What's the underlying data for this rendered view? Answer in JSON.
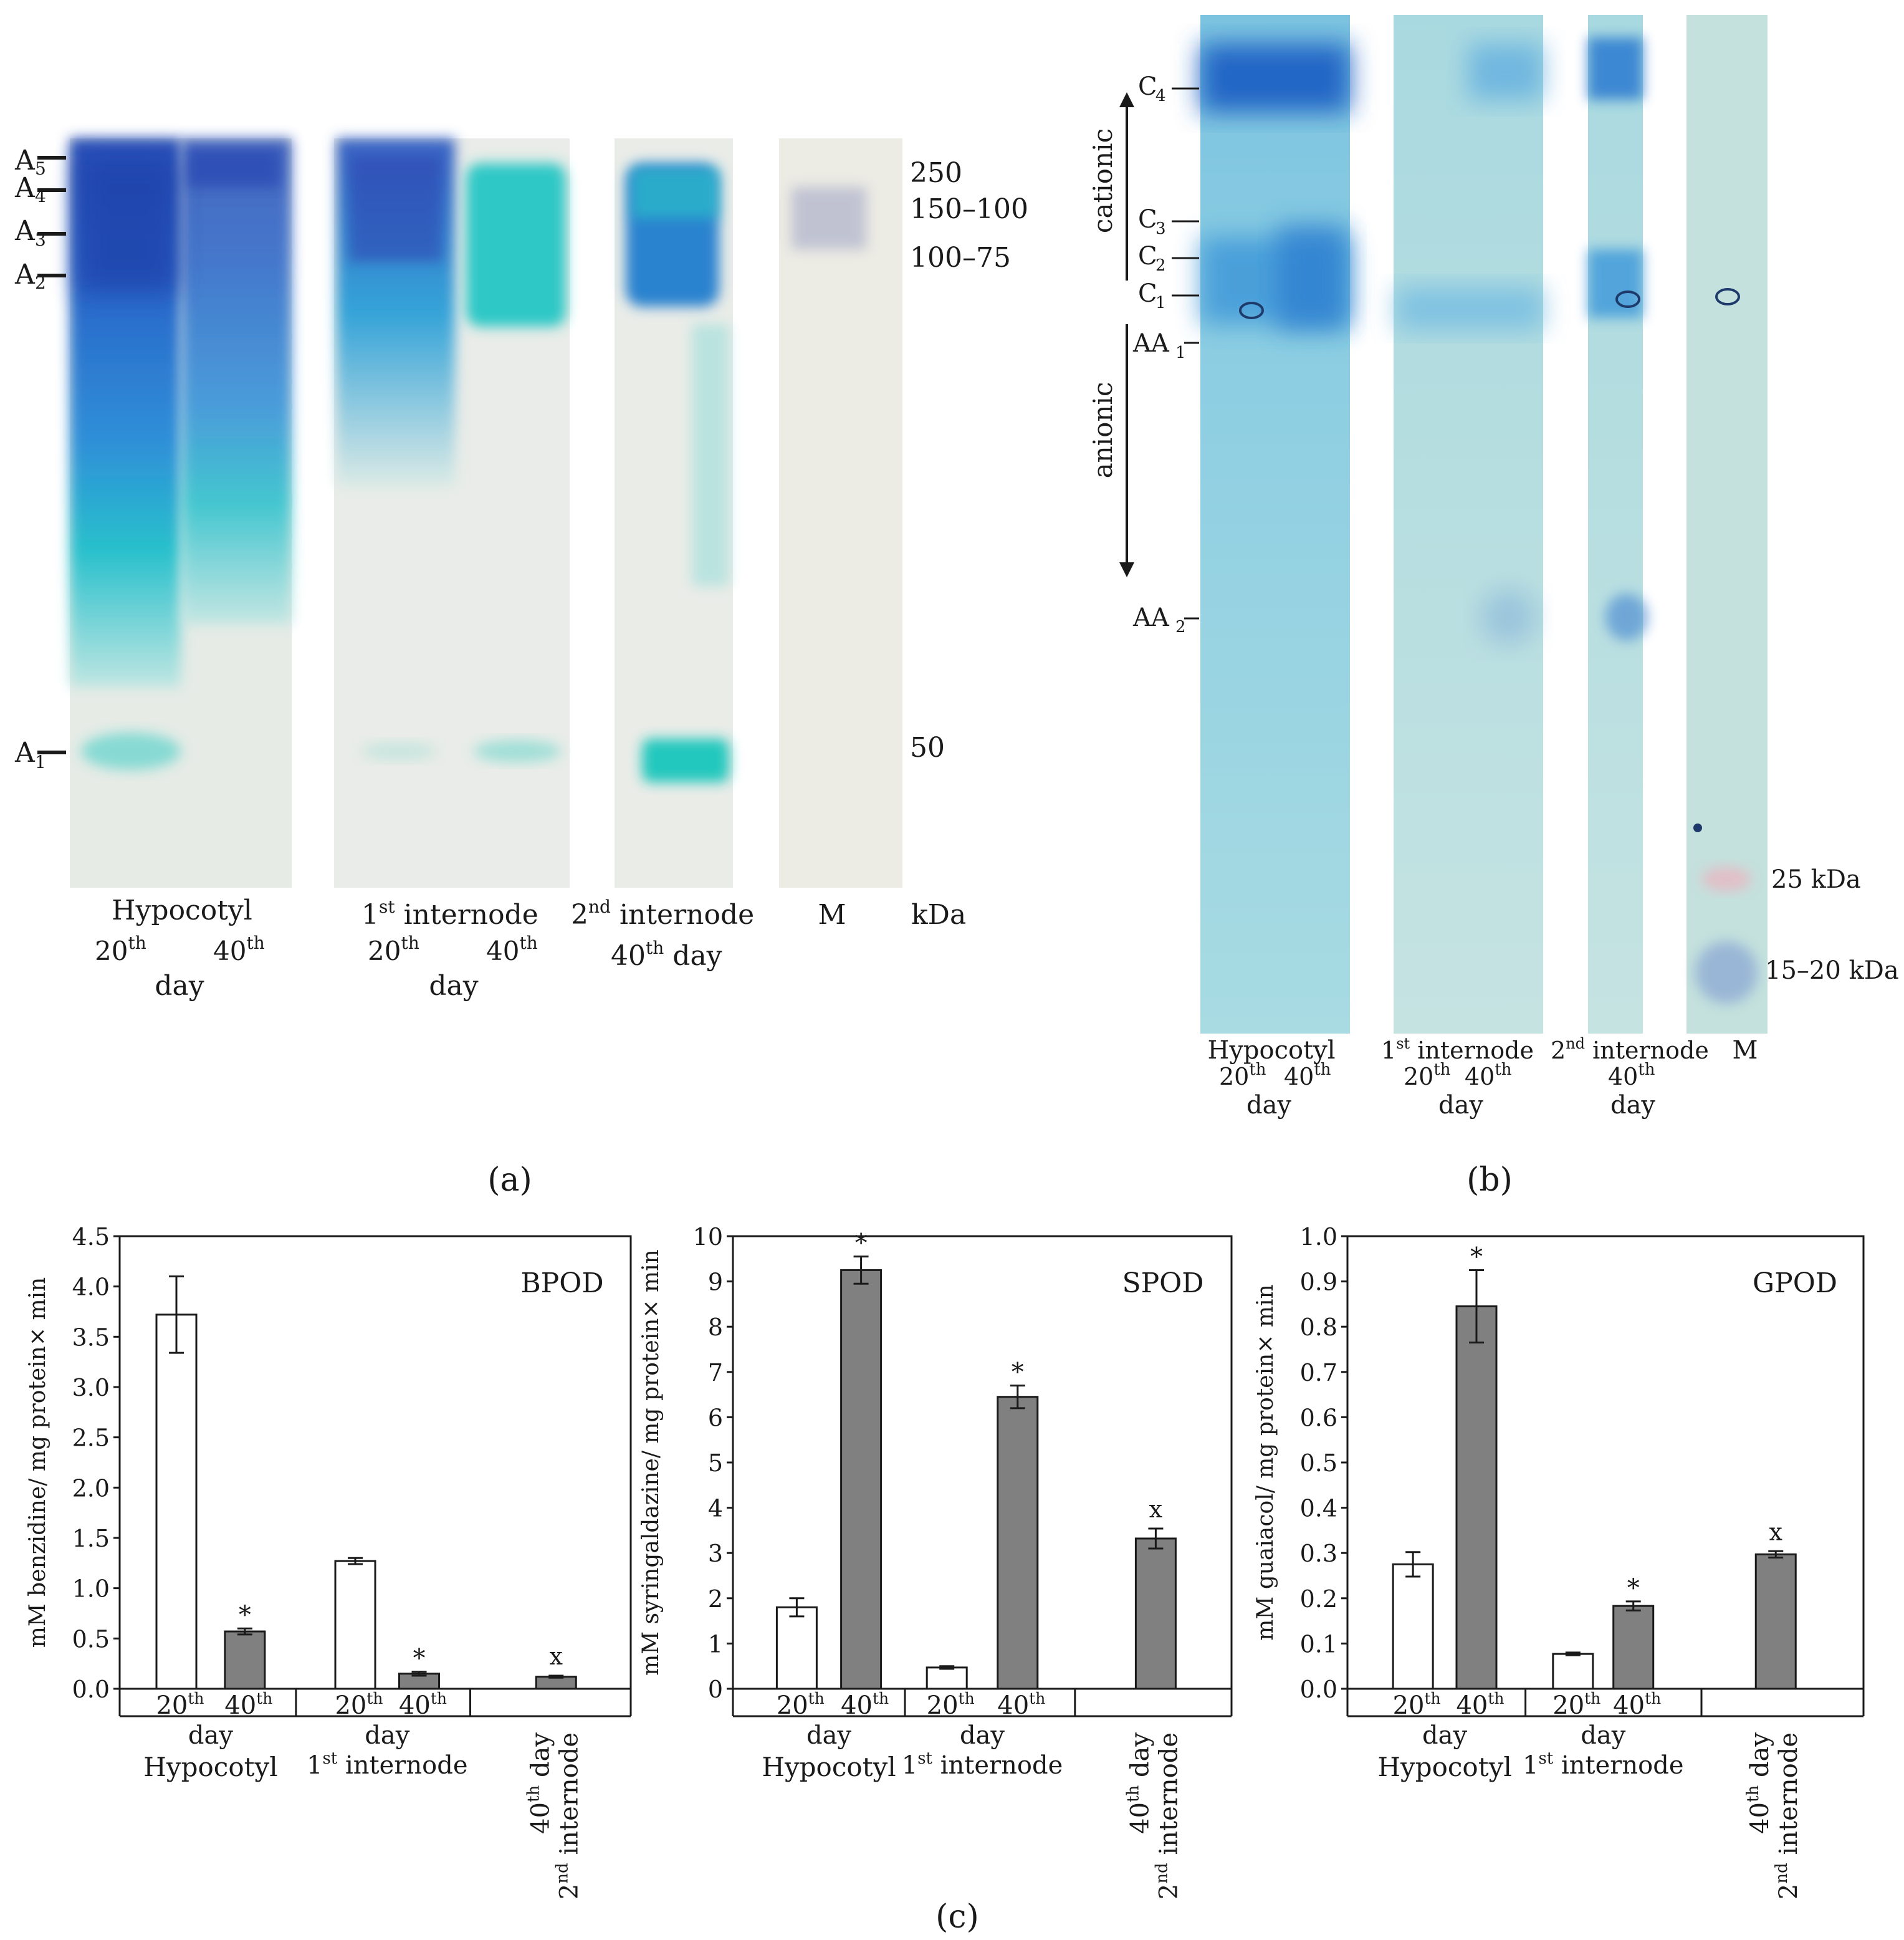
{
  "panels": {
    "a": {
      "label": "(a)",
      "band_labels": [
        {
          "main": "A",
          "sub": "5"
        },
        {
          "main": "A",
          "sub": "4"
        },
        {
          "main": "A",
          "sub": "3"
        },
        {
          "main": "A",
          "sub": "2"
        },
        {
          "main": "A",
          "sub": "1"
        }
      ],
      "marker_sizes": [
        "250",
        "150–100",
        "100–75",
        "50"
      ],
      "unit": "kDa",
      "lanes": {
        "hypocotyl": {
          "title": "Hypocotyl",
          "days": [
            "20",
            "40"
          ],
          "day_sup": "th",
          "day_word": "day"
        },
        "internode1": {
          "title_sup": "st",
          "title_num": "1",
          "title_rest": " internode",
          "days": [
            "20",
            "40"
          ],
          "day_sup": "th",
          "day_word": "day"
        },
        "internode2": {
          "title_num": "2",
          "title_sup": "nd",
          "title_rest": " internode",
          "day": "40",
          "day_sup": "th",
          "day_word": " day"
        },
        "marker": {
          "title": "M"
        }
      }
    },
    "b": {
      "label": "(b)",
      "cationic_label": "cationic",
      "anionic_label": "anionic",
      "band_labels": [
        {
          "main": "C",
          "sub": "4"
        },
        {
          "main": "C",
          "sub": "3"
        },
        {
          "main": "C",
          "sub": "2"
        },
        {
          "main": "C",
          "sub": "1"
        },
        {
          "main": "AA",
          "sub": "1"
        },
        {
          "main": "AA",
          "sub": "2"
        }
      ],
      "marker_sizes": [
        "25 kDa",
        "15–20 kDa"
      ],
      "lanes": {
        "hypocotyl": {
          "title": "Hypocotyl",
          "days": [
            "20",
            "40"
          ],
          "day_sup": "th",
          "day_word": "day"
        },
        "internode1": {
          "title_num": "1",
          "title_sup": "st",
          "title_rest": " internode",
          "days": [
            "20",
            "40"
          ],
          "day_sup": "th",
          "day_word": "day"
        },
        "internode2": {
          "title_num": "2",
          "title_sup": "nd",
          "title_rest": " internode",
          "day": "40",
          "day_sup": "th",
          "day_word": "day"
        },
        "marker": {
          "title": "M"
        }
      }
    },
    "c": {
      "label": "(c)",
      "category_labels": {
        "day20": "20",
        "day40": "40",
        "sup_th": "th",
        "day_word": "day",
        "hypocotyl": "Hypocotyl",
        "internode1_num": "1",
        "internode1_sup": "st",
        "internode1_rest": " internode",
        "rot_day": "40",
        "rot_day_sup": "th",
        "rot_day_word": " day",
        "rot_int_num": "2",
        "rot_int_sup": "nd",
        "rot_int_rest": " internode"
      }
    }
  },
  "colors": {
    "open_bar": "#ffffff",
    "filled_bar": "#808080",
    "axis": "#1a1a1a",
    "gel_background": "#eae9e3",
    "stain_dark": "#1f3fa8",
    "stain_cyan": "#27c4c6"
  },
  "chart_data": [
    {
      "type": "bar",
      "title": "BPOD",
      "ylabel": "mM benzidine/ mg protein× min",
      "ylim": [
        0,
        4.5
      ],
      "yticks": [
        0.0,
        0.5,
        1.0,
        1.5,
        2.0,
        2.5,
        3.0,
        3.5,
        4.0,
        4.5
      ],
      "ytick_labels": [
        "0.0",
        "0.5",
        "1.0",
        "1.5",
        "2.0",
        "2.5",
        "3.0",
        "3.5",
        "4.0",
        "4.5"
      ],
      "bars": [
        {
          "group": "Hypocotyl",
          "day": "20th",
          "value": 3.72,
          "error": 0.38,
          "fill": "open",
          "mark": ""
        },
        {
          "group": "Hypocotyl",
          "day": "40th",
          "value": 0.57,
          "error": 0.03,
          "fill": "filled",
          "mark": "*"
        },
        {
          "group": "1st internode",
          "day": "20th",
          "value": 1.27,
          "error": 0.03,
          "fill": "open",
          "mark": ""
        },
        {
          "group": "1st internode",
          "day": "40th",
          "value": 0.15,
          "error": 0.02,
          "fill": "filled",
          "mark": "*"
        },
        {
          "group": "2nd internode",
          "day": "40th",
          "value": 0.12,
          "error": 0.01,
          "fill": "filled",
          "mark": "x"
        }
      ]
    },
    {
      "type": "bar",
      "title": "SPOD",
      "ylabel": "mM  syringaldazine/ mg protein× min",
      "ylim": [
        0,
        10
      ],
      "yticks": [
        0,
        1,
        2,
        3,
        4,
        5,
        6,
        7,
        8,
        9,
        10
      ],
      "ytick_labels": [
        "0",
        "1",
        "2",
        "3",
        "4",
        "5",
        "6",
        "7",
        "8",
        "9",
        "10"
      ],
      "bars": [
        {
          "group": "Hypocotyl",
          "day": "20th",
          "value": 1.8,
          "error": 0.2,
          "fill": "open",
          "mark": ""
        },
        {
          "group": "Hypocotyl",
          "day": "40th",
          "value": 9.25,
          "error": 0.3,
          "fill": "filled",
          "mark": "*"
        },
        {
          "group": "1st internode",
          "day": "20th",
          "value": 0.47,
          "error": 0.03,
          "fill": "open",
          "mark": ""
        },
        {
          "group": "1st internode",
          "day": "40th",
          "value": 6.45,
          "error": 0.25,
          "fill": "filled",
          "mark": "*"
        },
        {
          "group": "2nd internode",
          "day": "40th",
          "value": 3.32,
          "error": 0.22,
          "fill": "filled",
          "mark": "x"
        }
      ]
    },
    {
      "type": "bar",
      "title": "GPOD",
      "ylabel": "mM guaiacol/ mg protein× min",
      "ylim": [
        0,
        1.0
      ],
      "yticks": [
        0.0,
        0.1,
        0.2,
        0.3,
        0.4,
        0.5,
        0.6,
        0.7,
        0.8,
        0.9,
        1.0
      ],
      "ytick_labels": [
        "0.0",
        "0.1",
        "0.2",
        "0.3",
        "0.4",
        "0.5",
        "0.6",
        "0.7",
        "0.8",
        "0.9",
        "1.0"
      ],
      "bars": [
        {
          "group": "Hypocotyl",
          "day": "20th",
          "value": 0.275,
          "error": 0.027,
          "fill": "open",
          "mark": ""
        },
        {
          "group": "Hypocotyl",
          "day": "40th",
          "value": 0.845,
          "error": 0.08,
          "fill": "filled",
          "mark": "*"
        },
        {
          "group": "1st internode",
          "day": "20th",
          "value": 0.077,
          "error": 0.003,
          "fill": "open",
          "mark": ""
        },
        {
          "group": "1st internode",
          "day": "40th",
          "value": 0.183,
          "error": 0.01,
          "fill": "filled",
          "mark": "*"
        },
        {
          "group": "2nd internode",
          "day": "40th",
          "value": 0.297,
          "error": 0.007,
          "fill": "filled",
          "mark": "x"
        }
      ]
    }
  ]
}
